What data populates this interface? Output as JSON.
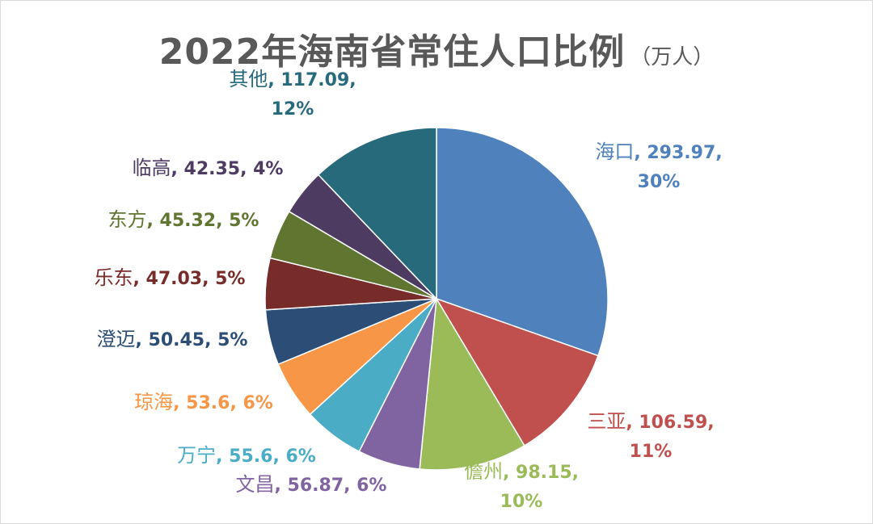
{
  "title": "2022年海南省常住人口比例",
  "unit": "（万人）",
  "chart_data": {
    "type": "pie",
    "title": "2022年海南省常住人口比例",
    "subtitle": "（万人）",
    "start_angle_deg": 0,
    "direction": "clockwise",
    "slices": [
      {
        "name": "海口",
        "value": 293.97,
        "percent": "30%",
        "color": "#4F81BD"
      },
      {
        "name": "三亚",
        "value": 106.59,
        "percent": "11%",
        "color": "#C0504D"
      },
      {
        "name": "儋州",
        "value": 98.15,
        "percent": "10%",
        "color": "#9BBB59"
      },
      {
        "name": "文昌",
        "value": 56.87,
        "percent": "6%",
        "color": "#8064A2"
      },
      {
        "name": "万宁",
        "value": 55.6,
        "percent": "6%",
        "color": "#4BACC6"
      },
      {
        "name": "琼海",
        "value": 53.6,
        "percent": "6%",
        "color": "#F79646"
      },
      {
        "name": "澄迈",
        "value": 50.45,
        "percent": "5%",
        "color": "#2C4D75"
      },
      {
        "name": "乐东",
        "value": 47.03,
        "percent": "5%",
        "color": "#772C2A"
      },
      {
        "name": "东方",
        "value": 45.32,
        "percent": "5%",
        "color": "#5F7530"
      },
      {
        "name": "临高",
        "value": 42.35,
        "percent": "4%",
        "color": "#4D3B62"
      },
      {
        "name": "其他",
        "value": 117.09,
        "percent": "12%",
        "color": "#276A7C"
      }
    ]
  }
}
